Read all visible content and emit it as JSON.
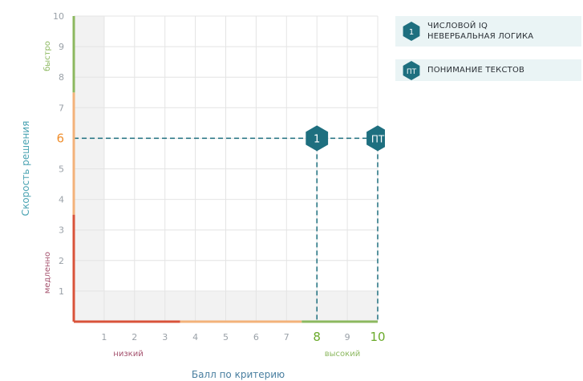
{
  "chart_data": {
    "type": "scatter",
    "title": "",
    "xlabel": "Балл по критерию",
    "ylabel": "Скорость решения",
    "xlim": [
      0,
      10
    ],
    "ylim": [
      0,
      10
    ],
    "x_ticks": [
      1,
      2,
      3,
      4,
      5,
      6,
      7,
      8,
      9,
      10
    ],
    "y_ticks": [
      1,
      2,
      3,
      4,
      5,
      6,
      7,
      8,
      9,
      10
    ],
    "highlighted_x_ticks": [
      8,
      10
    ],
    "highlighted_y_ticks": [
      6
    ],
    "x_zone_labels": [
      {
        "text": "низкий",
        "color": "#a5526e"
      },
      {
        "text": "высокий",
        "color": "#8cb85f"
      }
    ],
    "y_zone_labels": [
      {
        "text": "медленно",
        "color": "#a5526e"
      },
      {
        "text": "быстро",
        "color": "#8cb85f"
      }
    ],
    "x_axis_segments": [
      {
        "from": 0,
        "to": 3.5,
        "color": "#d9533a"
      },
      {
        "from": 3.5,
        "to": 7.5,
        "color": "#f3b27a"
      },
      {
        "from": 7.5,
        "to": 10,
        "color": "#8cb85f"
      }
    ],
    "y_axis_segments": [
      {
        "from": 0,
        "to": 3.5,
        "color": "#d9533a"
      },
      {
        "from": 3.5,
        "to": 7.5,
        "color": "#f3b27a"
      },
      {
        "from": 7.5,
        "to": 10,
        "color": "#8cb85f"
      }
    ],
    "shaded_regions": [
      {
        "x": [
          0,
          1
        ],
        "y": [
          0,
          10
        ]
      },
      {
        "x": [
          0,
          10
        ],
        "y": [
          0,
          1
        ]
      }
    ],
    "grid": true,
    "points": [
      {
        "label": "1",
        "x": 8,
        "y": 6
      },
      {
        "label": "ПТ",
        "x": 10,
        "y": 6
      }
    ],
    "legend": {
      "position": "top-right",
      "items": [
        {
          "badge": "1",
          "lines": [
            "Числовой IQ",
            "Невербальная логика"
          ]
        },
        {
          "badge": "ПТ",
          "lines": [
            "Понимание текстов"
          ]
        }
      ]
    }
  },
  "colors": {
    "accent": "#1e6f7f",
    "ylabel": "#4aa3b2",
    "xlabel": "#4a7fa0",
    "tick": "#9aa1a8",
    "tick_orange": "#f08f2e",
    "tick_green": "#6aaa2a",
    "grid": "#e4e4e4",
    "shade": "#f2f2f2"
  }
}
